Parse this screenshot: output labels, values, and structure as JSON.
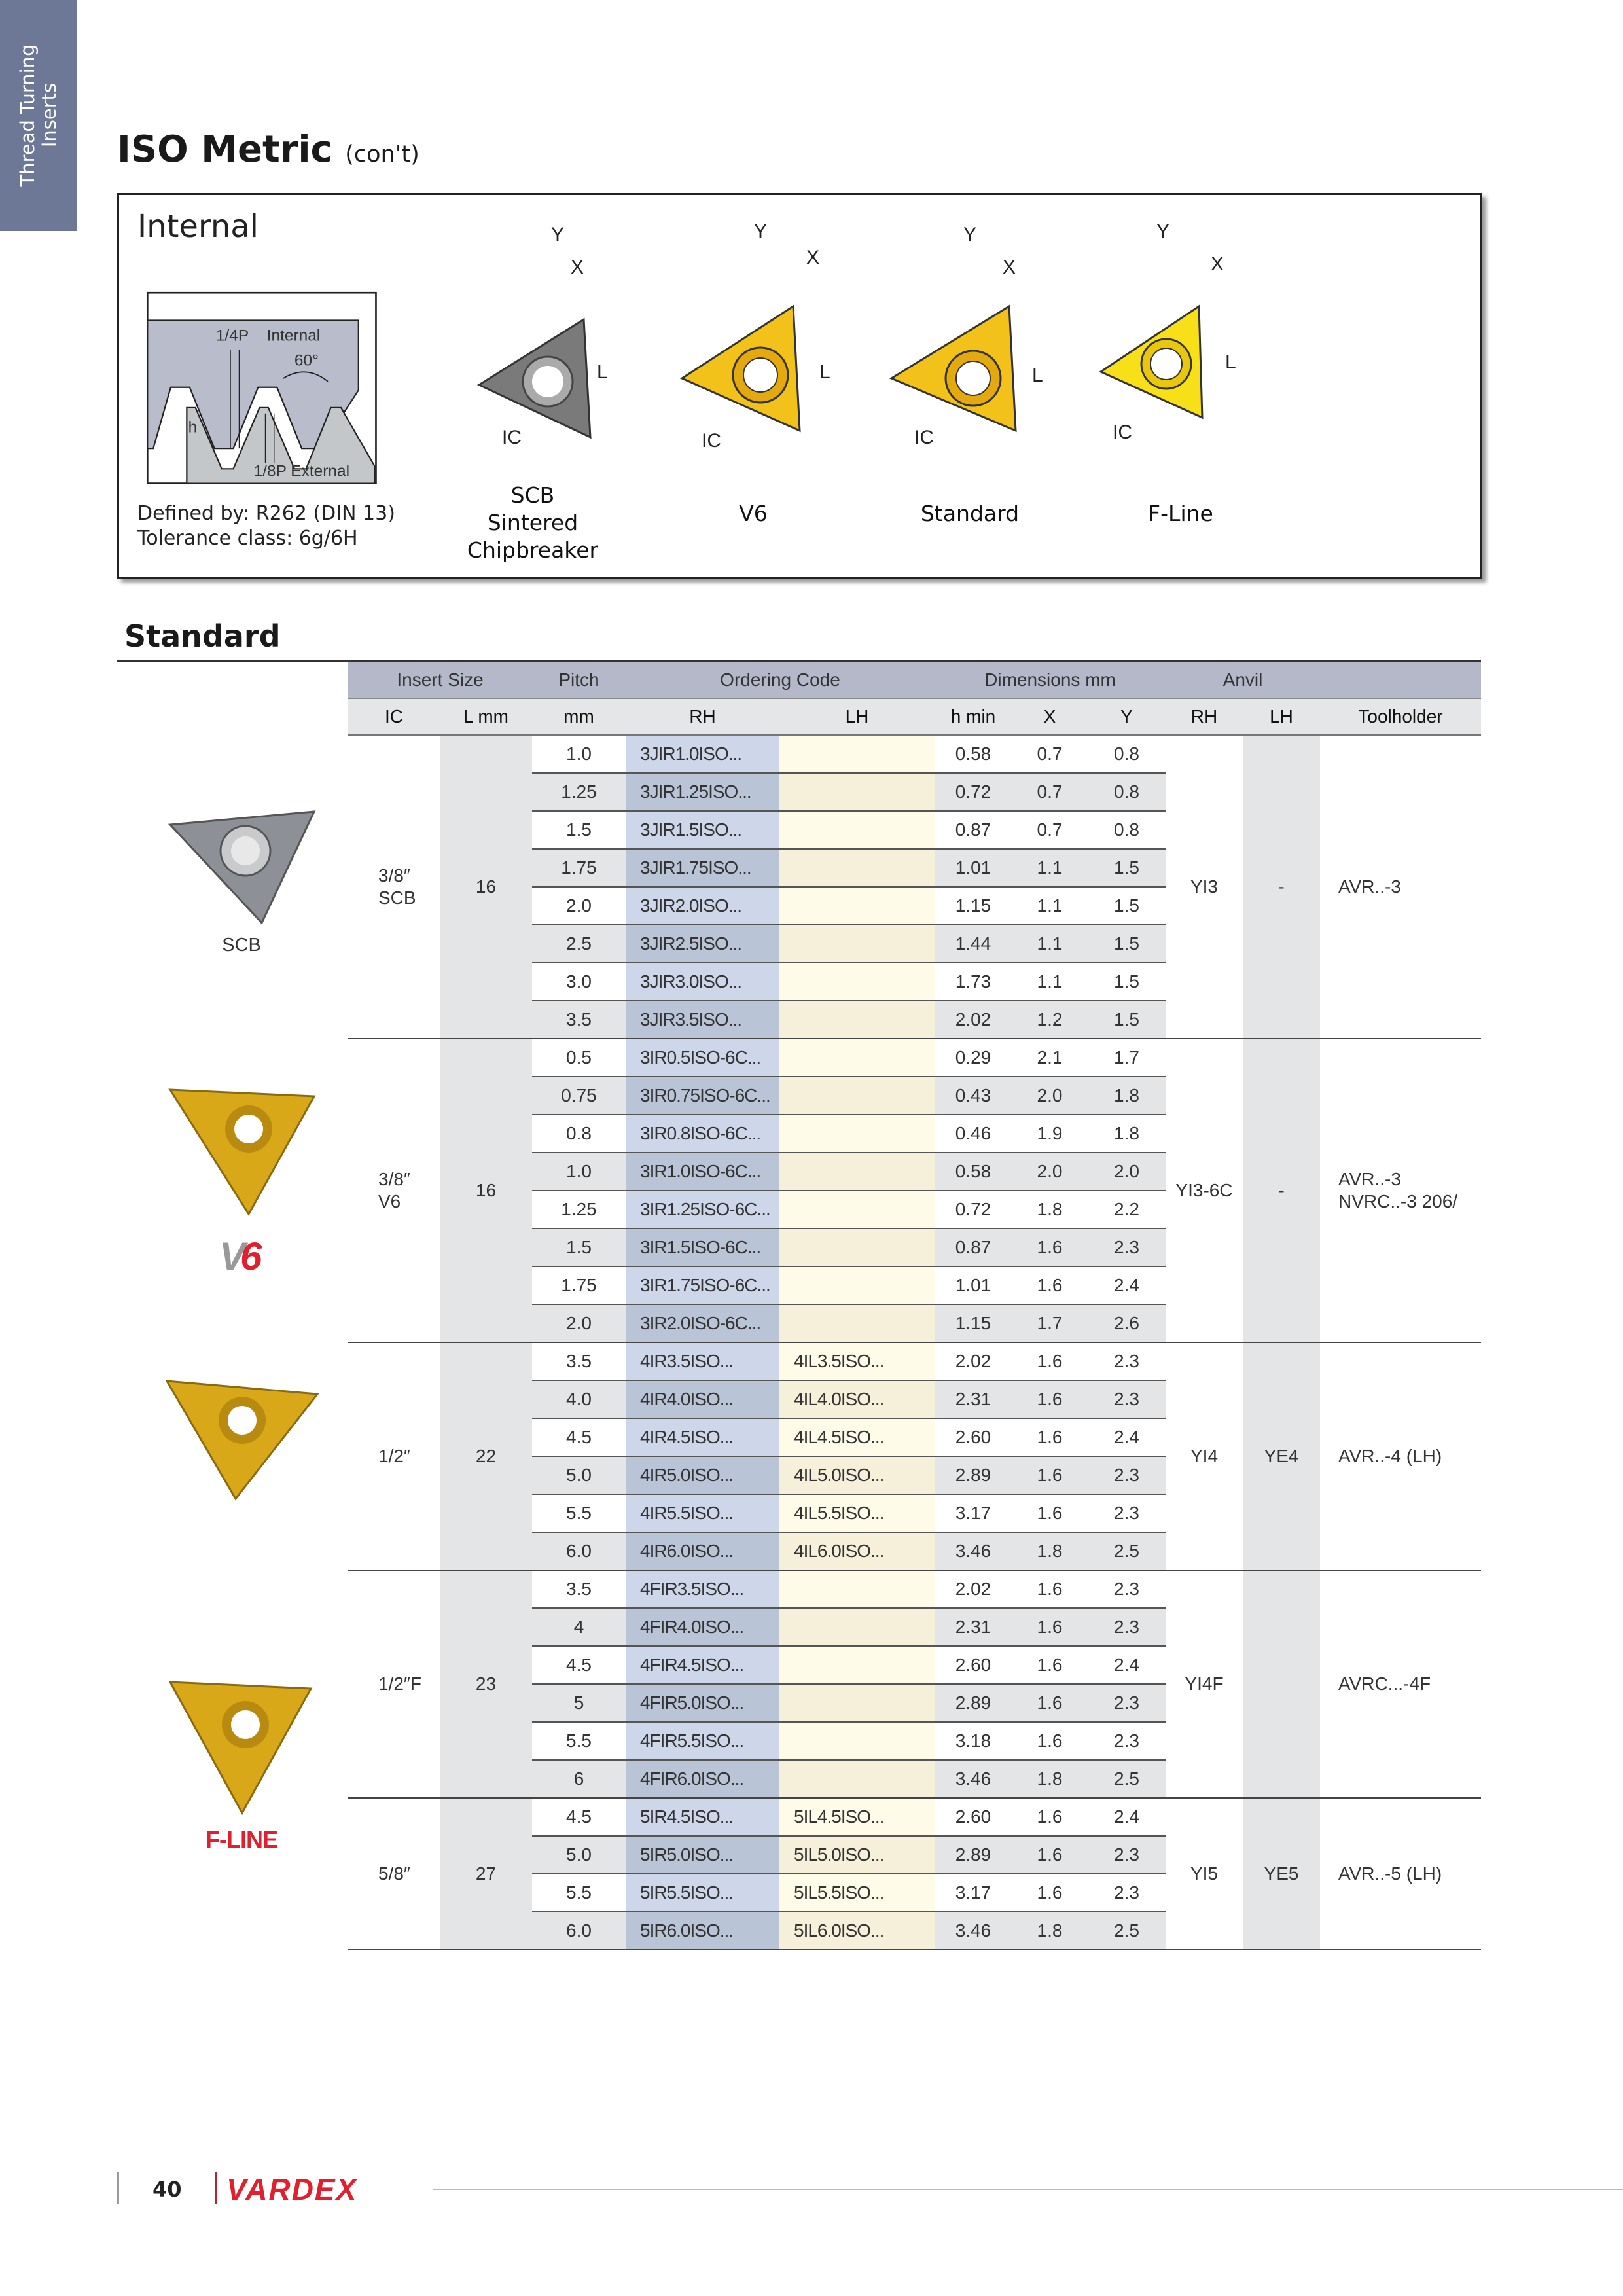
{
  "side_tab": "Thread Turning\nInserts",
  "title": {
    "main": "ISO Metric",
    "sub": "(con't)"
  },
  "internal_box": {
    "heading": "Internal",
    "profile_labels": {
      "quarter": "1/4P",
      "internal": "Internal",
      "angle": "60°",
      "h": "h",
      "eighth": "1/8P External"
    },
    "defined_by": "Defined by: R262 (DIN 13)\nTolerance class: 6g/6H",
    "dim_labels": {
      "y": "Y",
      "x": "X",
      "l": "L",
      "ic": "IC"
    },
    "inserts": [
      {
        "label": "SCB\nSintered\nChipbreaker",
        "color": "#7a7a7a"
      },
      {
        "label": "V6",
        "color": "#f2c21b"
      },
      {
        "label": "Standard",
        "color": "#f2c21b"
      },
      {
        "label": "F-Line",
        "color": "#f7e017"
      }
    ]
  },
  "section": "Standard",
  "table": {
    "group_headers": [
      "Insert Size",
      "Pitch",
      "Ordering Code",
      "Dimensions mm",
      "Anvil",
      ""
    ],
    "columns": [
      "IC",
      "L mm",
      "mm",
      "RH",
      "LH",
      "h min",
      "X",
      "Y",
      "RH",
      "LH",
      "Toolholder"
    ],
    "groups": [
      {
        "image_label": "SCB",
        "ic": "3/8″\nSCB",
        "l": "16",
        "anvil_rh": "YI3",
        "anvil_lh": "-",
        "toolholder": "AVR..-3",
        "rows": [
          [
            "1.0",
            "3JIR1.0ISO...",
            "",
            "0.58",
            "0.7",
            "0.8"
          ],
          [
            "1.25",
            "3JIR1.25ISO...",
            "",
            "0.72",
            "0.7",
            "0.8"
          ],
          [
            "1.5",
            "3JIR1.5ISO...",
            "",
            "0.87",
            "0.7",
            "0.8"
          ],
          [
            "1.75",
            "3JIR1.75ISO...",
            "",
            "1.01",
            "1.1",
            "1.5"
          ],
          [
            "2.0",
            "3JIR2.0ISO...",
            "",
            "1.15",
            "1.1",
            "1.5"
          ],
          [
            "2.5",
            "3JIR2.5ISO...",
            "",
            "1.44",
            "1.1",
            "1.5"
          ],
          [
            "3.0",
            "3JIR3.0ISO...",
            "",
            "1.73",
            "1.1",
            "1.5"
          ],
          [
            "3.5",
            "3JIR3.5ISO...",
            "",
            "2.02",
            "1.2",
            "1.5"
          ]
        ]
      },
      {
        "logo": "V6",
        "ic": "3/8″\nV6",
        "l": "16",
        "anvil_rh": "YI3-6C",
        "anvil_lh": "-",
        "toolholder": "AVR..-3\nNVRC..-3 206/",
        "rows": [
          [
            "0.5",
            "3IR0.5ISO-6C...",
            "",
            "0.29",
            "2.1",
            "1.7"
          ],
          [
            "0.75",
            "3IR0.75ISO-6C...",
            "",
            "0.43",
            "2.0",
            "1.8"
          ],
          [
            "0.8",
            "3IR0.8ISO-6C...",
            "",
            "0.46",
            "1.9",
            "1.8"
          ],
          [
            "1.0",
            "3IR1.0ISO-6C...",
            "",
            "0.58",
            "2.0",
            "2.0"
          ],
          [
            "1.25",
            "3IR1.25ISO-6C...",
            "",
            "0.72",
            "1.8",
            "2.2"
          ],
          [
            "1.5",
            "3IR1.5ISO-6C...",
            "",
            "0.87",
            "1.6",
            "2.3"
          ],
          [
            "1.75",
            "3IR1.75ISO-6C...",
            "",
            "1.01",
            "1.6",
            "2.4"
          ],
          [
            "2.0",
            "3IR2.0ISO-6C...",
            "",
            "1.15",
            "1.7",
            "2.6"
          ]
        ]
      },
      {
        "ic": "1/2″",
        "l": "22",
        "anvil_rh": "YI4",
        "anvil_lh": "YE4",
        "toolholder": "AVR..-4 (LH)",
        "rows": [
          [
            "3.5",
            "4IR3.5ISO...",
            "4IL3.5ISO...",
            "2.02",
            "1.6",
            "2.3"
          ],
          [
            "4.0",
            "4IR4.0ISO...",
            "4IL4.0ISO...",
            "2.31",
            "1.6",
            "2.3"
          ],
          [
            "4.5",
            "4IR4.5ISO...",
            "4IL4.5ISO...",
            "2.60",
            "1.6",
            "2.4"
          ],
          [
            "5.0",
            "4IR5.0ISO...",
            "4IL5.0ISO...",
            "2.89",
            "1.6",
            "2.3"
          ],
          [
            "5.5",
            "4IR5.5ISO...",
            "4IL5.5ISO...",
            "3.17",
            "1.6",
            "2.3"
          ],
          [
            "6.0",
            "4IR6.0ISO...",
            "4IL6.0ISO...",
            "3.46",
            "1.8",
            "2.5"
          ]
        ]
      },
      {
        "ic": "1/2″F",
        "l": "23",
        "anvil_rh": "YI4F",
        "anvil_lh": "",
        "toolholder": "AVRC...-4F",
        "rows": [
          [
            "3.5",
            "4FIR3.5ISO...",
            "",
            "2.02",
            "1.6",
            "2.3"
          ],
          [
            "4",
            "4FIR4.0ISO...",
            "",
            "2.31",
            "1.6",
            "2.3"
          ],
          [
            "4.5",
            "4FIR4.5ISO...",
            "",
            "2.60",
            "1.6",
            "2.4"
          ],
          [
            "5",
            "4FIR5.0ISO...",
            "",
            "2.89",
            "1.6",
            "2.3"
          ],
          [
            "5.5",
            "4FIR5.5ISO...",
            "",
            "3.18",
            "1.6",
            "2.3"
          ],
          [
            "6",
            "4FIR6.0ISO...",
            "",
            "3.46",
            "1.8",
            "2.5"
          ]
        ]
      },
      {
        "logo": "F-LINE",
        "ic": "5/8″",
        "l": "27",
        "anvil_rh": "YI5",
        "anvil_lh": "YE5",
        "toolholder": "AVR..-5 (LH)",
        "rows": [
          [
            "4.5",
            "5IR4.5ISO...",
            "5IL4.5ISO...",
            "2.60",
            "1.6",
            "2.4"
          ],
          [
            "5.0",
            "5IR5.0ISO...",
            "5IL5.0ISO...",
            "2.89",
            "1.6",
            "2.3"
          ],
          [
            "5.5",
            "5IR5.5ISO...",
            "5IL5.5ISO...",
            "3.17",
            "1.6",
            "2.3"
          ],
          [
            "6.0",
            "5IR6.0ISO...",
            "5IL6.0ISO...",
            "3.46",
            "1.8",
            "2.5"
          ]
        ]
      }
    ]
  },
  "footer": {
    "page": "40",
    "brand": "VARDEX",
    "brand_color": "#e0202e"
  }
}
